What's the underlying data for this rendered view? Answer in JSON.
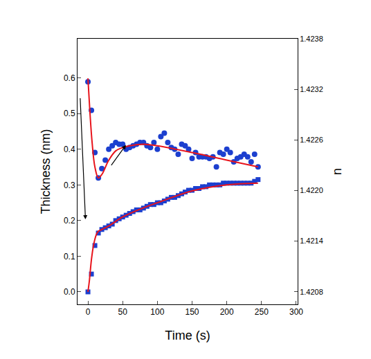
{
  "chart_data": {
    "type": "scatter",
    "x_label": "Time (s)",
    "y_label": "Thickness (nm)",
    "y2_label": "n",
    "xlim": [
      -15,
      302
    ],
    "xticks": [
      0,
      50,
      100,
      150,
      200,
      250,
      300
    ],
    "ylim": [
      -0.035,
      0.71
    ],
    "yticks": [
      {
        "value": 0,
        "label": "0.0"
      },
      0.1,
      0.2,
      0.3,
      0.4,
      0.5,
      0.6
    ],
    "y2lim": [
      1.42065,
      1.4238
    ],
    "y2ticks": [
      1.4208,
      1.4214,
      {
        "value": 1.422,
        "label": "1.4220"
      },
      1.4226,
      1.4232,
      1.4238
    ],
    "grid": false,
    "series": [
      {
        "type": "scatter",
        "marker": "circle",
        "color": "#1c3fcf",
        "axis": "y2",
        "x": [
          0,
          5,
          10,
          15,
          20,
          25,
          30,
          35,
          40,
          45,
          50,
          55,
          60,
          65,
          70,
          75,
          80,
          85,
          90,
          95,
          100,
          105,
          110,
          115,
          120,
          125,
          130,
          135,
          140,
          145,
          150,
          155,
          160,
          165,
          170,
          175,
          180,
          185,
          190,
          195,
          200,
          205,
          210,
          215,
          220,
          225,
          230,
          235,
          240,
          245
        ],
        "values": [
          1.42329,
          1.42295,
          1.42245,
          1.42215,
          1.42226,
          1.42236,
          1.42249,
          1.42253,
          1.42257,
          1.42255,
          1.42255,
          1.42249,
          1.42251,
          1.42253,
          1.42255,
          1.42257,
          1.42257,
          1.42253,
          1.42251,
          1.42257,
          1.42249,
          1.42264,
          1.42268,
          1.42257,
          1.42251,
          1.42249,
          1.42243,
          1.42255,
          1.42253,
          1.42249,
          1.42238,
          1.42245,
          1.4224,
          1.4224,
          1.4224,
          1.42238,
          1.4224,
          1.42228,
          1.42245,
          1.42243,
          1.42249,
          1.42245,
          1.42234,
          1.42238,
          1.4224,
          1.42243,
          1.4224,
          1.42234,
          1.42243,
          1.42228
        ]
      },
      {
        "type": "line",
        "line_style": "solid",
        "color": "#e8141c",
        "axis": "y2",
        "x": [
          0,
          3,
          6,
          10,
          15,
          20,
          30,
          40,
          50,
          60,
          80,
          100,
          150,
          200,
          245
        ],
        "values": [
          1.42333,
          1.42291,
          1.42257,
          1.42228,
          1.42215,
          1.42219,
          1.42236,
          1.42247,
          1.42251,
          1.42253,
          1.42255,
          1.42253,
          1.42245,
          1.42236,
          1.42228
        ]
      },
      {
        "type": "scatter",
        "marker": "square",
        "color": "#1c3fcf",
        "x": [
          0,
          5,
          10,
          15,
          20,
          25,
          30,
          35,
          40,
          45,
          50,
          55,
          60,
          65,
          70,
          75,
          80,
          85,
          90,
          95,
          100,
          105,
          110,
          115,
          120,
          125,
          130,
          135,
          140,
          145,
          150,
          155,
          160,
          165,
          170,
          175,
          180,
          185,
          190,
          195,
          200,
          205,
          210,
          215,
          220,
          225,
          230,
          235,
          240,
          245
        ],
        "values": [
          0,
          0.05,
          0.13,
          0.165,
          0.175,
          0.18,
          0.185,
          0.19,
          0.2,
          0.205,
          0.21,
          0.215,
          0.22,
          0.225,
          0.23,
          0.23,
          0.235,
          0.24,
          0.245,
          0.245,
          0.25,
          0.25,
          0.255,
          0.26,
          0.265,
          0.265,
          0.27,
          0.275,
          0.28,
          0.285,
          0.285,
          0.29,
          0.29,
          0.295,
          0.295,
          0.3,
          0.3,
          0.3,
          0.3,
          0.305,
          0.305,
          0.305,
          0.305,
          0.305,
          0.305,
          0.305,
          0.305,
          0.305,
          0.31,
          0.315
        ]
      },
      {
        "type": "line",
        "line_style": "solid",
        "color": "#e8141c",
        "x": [
          0,
          2,
          5,
          8,
          12,
          15,
          20,
          30,
          50,
          75,
          100,
          150,
          200,
          245
        ],
        "values": [
          0,
          0.03,
          0.09,
          0.13,
          0.16,
          0.17,
          0.175,
          0.185,
          0.21,
          0.232,
          0.25,
          0.283,
          0.3,
          0.305
        ]
      }
    ]
  }
}
